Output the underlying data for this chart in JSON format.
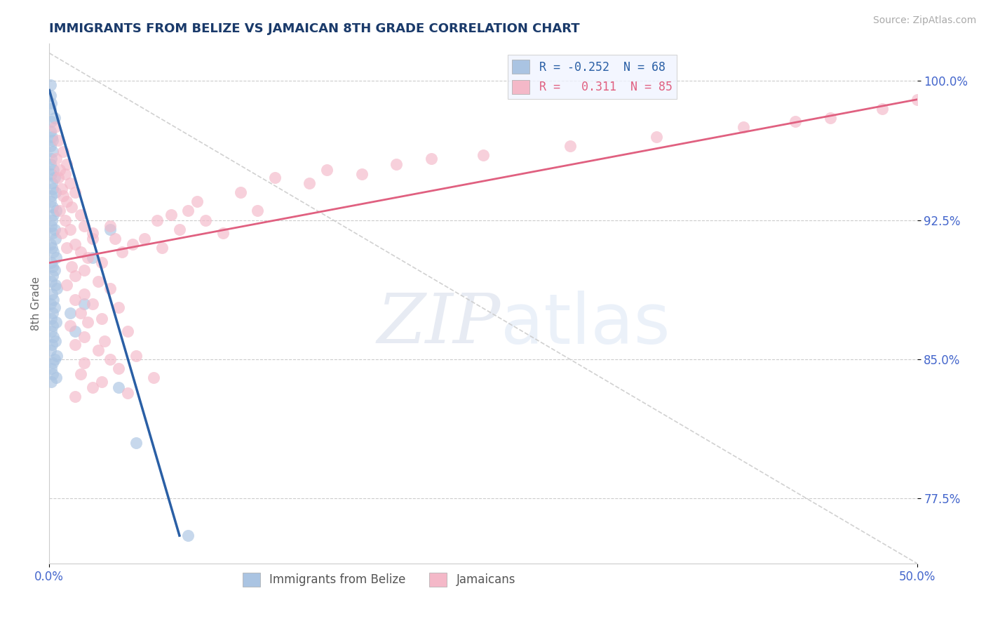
{
  "title": "IMMIGRANTS FROM BELIZE VS JAMAICAN 8TH GRADE CORRELATION CHART",
  "source_text": "Source: ZipAtlas.com",
  "ylabel": "8th Grade",
  "xlim": [
    0.0,
    50.0
  ],
  "ylim": [
    74.0,
    102.0
  ],
  "xtick_labels": [
    "0.0%",
    "50.0%"
  ],
  "xtick_vals": [
    0.0,
    50.0
  ],
  "ytick_labels": [
    "100.0%",
    "92.5%",
    "85.0%",
    "77.5%"
  ],
  "ytick_vals": [
    100.0,
    92.5,
    85.0,
    77.5
  ],
  "belize_R": -0.252,
  "belize_N": 68,
  "jamaican_R": 0.311,
  "jamaican_N": 85,
  "belize_color": "#aac4e2",
  "jamaican_color": "#f4b8c8",
  "belize_line_color": "#2a5fa5",
  "jamaican_line_color": "#e06080",
  "watermark_zip": "ZIP",
  "watermark_atlas": "atlas",
  "title_color": "#1a3a6a",
  "title_fontsize": 13,
  "source_color": "#aaaaaa",
  "legend_bg": "#f0f4ff",
  "belize_scatter": [
    [
      0.05,
      99.8
    ],
    [
      0.08,
      99.2
    ],
    [
      0.12,
      98.8
    ],
    [
      0.05,
      98.5
    ],
    [
      0.3,
      98.0
    ],
    [
      0.1,
      97.8
    ],
    [
      0.08,
      97.3
    ],
    [
      0.15,
      97.0
    ],
    [
      0.2,
      96.8
    ],
    [
      0.05,
      96.5
    ],
    [
      0.18,
      96.2
    ],
    [
      0.12,
      95.8
    ],
    [
      0.08,
      95.5
    ],
    [
      0.25,
      95.2
    ],
    [
      0.1,
      95.0
    ],
    [
      0.3,
      94.8
    ],
    [
      0.15,
      94.5
    ],
    [
      0.2,
      94.2
    ],
    [
      0.35,
      94.0
    ],
    [
      0.12,
      93.8
    ],
    [
      0.08,
      93.5
    ],
    [
      0.18,
      93.2
    ],
    [
      0.4,
      93.0
    ],
    [
      0.25,
      92.8
    ],
    [
      0.15,
      92.5
    ],
    [
      0.1,
      92.2
    ],
    [
      0.3,
      92.0
    ],
    [
      0.2,
      91.8
    ],
    [
      0.35,
      91.5
    ],
    [
      0.08,
      91.2
    ],
    [
      0.15,
      91.0
    ],
    [
      0.25,
      90.8
    ],
    [
      0.4,
      90.5
    ],
    [
      0.12,
      90.2
    ],
    [
      0.2,
      90.0
    ],
    [
      0.3,
      89.8
    ],
    [
      0.18,
      89.5
    ],
    [
      0.1,
      89.2
    ],
    [
      0.35,
      89.0
    ],
    [
      0.45,
      88.8
    ],
    [
      0.15,
      88.5
    ],
    [
      0.25,
      88.2
    ],
    [
      0.08,
      88.0
    ],
    [
      0.3,
      87.8
    ],
    [
      0.2,
      87.5
    ],
    [
      0.12,
      87.2
    ],
    [
      0.4,
      87.0
    ],
    [
      0.18,
      86.8
    ],
    [
      0.1,
      86.5
    ],
    [
      0.25,
      86.2
    ],
    [
      0.35,
      86.0
    ],
    [
      0.15,
      85.8
    ],
    [
      0.08,
      85.5
    ],
    [
      0.45,
      85.2
    ],
    [
      0.3,
      85.0
    ],
    [
      0.2,
      84.8
    ],
    [
      0.12,
      84.5
    ],
    [
      0.18,
      84.2
    ],
    [
      0.4,
      84.0
    ],
    [
      0.1,
      83.8
    ],
    [
      1.5,
      86.5
    ],
    [
      2.0,
      88.0
    ],
    [
      1.2,
      87.5
    ],
    [
      3.5,
      92.0
    ],
    [
      2.5,
      90.5
    ],
    [
      4.0,
      83.5
    ],
    [
      5.0,
      80.5
    ],
    [
      8.0,
      75.5
    ]
  ],
  "jamaican_scatter": [
    [
      0.3,
      97.5
    ],
    [
      0.5,
      96.8
    ],
    [
      0.8,
      96.2
    ],
    [
      0.4,
      95.8
    ],
    [
      1.0,
      95.5
    ],
    [
      0.6,
      95.2
    ],
    [
      0.9,
      95.0
    ],
    [
      0.5,
      94.8
    ],
    [
      1.2,
      94.5
    ],
    [
      0.7,
      94.2
    ],
    [
      1.5,
      94.0
    ],
    [
      0.8,
      93.8
    ],
    [
      1.0,
      93.5
    ],
    [
      1.3,
      93.2
    ],
    [
      0.6,
      93.0
    ],
    [
      1.8,
      92.8
    ],
    [
      0.9,
      92.5
    ],
    [
      2.0,
      92.2
    ],
    [
      1.2,
      92.0
    ],
    [
      0.7,
      91.8
    ],
    [
      2.5,
      91.5
    ],
    [
      1.5,
      91.2
    ],
    [
      1.0,
      91.0
    ],
    [
      1.8,
      90.8
    ],
    [
      2.2,
      90.5
    ],
    [
      3.0,
      90.2
    ],
    [
      1.3,
      90.0
    ],
    [
      2.0,
      89.8
    ],
    [
      1.5,
      89.5
    ],
    [
      2.8,
      89.2
    ],
    [
      1.0,
      89.0
    ],
    [
      3.5,
      88.8
    ],
    [
      2.0,
      88.5
    ],
    [
      1.5,
      88.2
    ],
    [
      2.5,
      88.0
    ],
    [
      4.0,
      87.8
    ],
    [
      1.8,
      87.5
    ],
    [
      3.0,
      87.2
    ],
    [
      2.2,
      87.0
    ],
    [
      1.2,
      86.8
    ],
    [
      4.5,
      86.5
    ],
    [
      2.0,
      86.2
    ],
    [
      3.2,
      86.0
    ],
    [
      1.5,
      85.8
    ],
    [
      2.8,
      85.5
    ],
    [
      5.0,
      85.2
    ],
    [
      3.5,
      85.0
    ],
    [
      2.0,
      84.8
    ],
    [
      4.0,
      84.5
    ],
    [
      1.8,
      84.2
    ],
    [
      6.0,
      84.0
    ],
    [
      3.0,
      83.8
    ],
    [
      2.5,
      83.5
    ],
    [
      4.5,
      83.2
    ],
    [
      1.5,
      83.0
    ],
    [
      7.0,
      92.8
    ],
    [
      8.0,
      93.0
    ],
    [
      9.0,
      92.5
    ],
    [
      10.0,
      91.8
    ],
    [
      12.0,
      93.0
    ],
    [
      15.0,
      94.5
    ],
    [
      18.0,
      95.0
    ],
    [
      20.0,
      95.5
    ],
    [
      25.0,
      96.0
    ],
    [
      30.0,
      96.5
    ],
    [
      35.0,
      97.0
    ],
    [
      40.0,
      97.5
    ],
    [
      43.0,
      97.8
    ],
    [
      45.0,
      98.0
    ],
    [
      48.0,
      98.5
    ],
    [
      50.0,
      99.0
    ],
    [
      5.5,
      91.5
    ],
    [
      6.5,
      91.0
    ],
    [
      3.8,
      91.5
    ],
    [
      4.2,
      90.8
    ],
    [
      7.5,
      92.0
    ],
    [
      2.5,
      91.8
    ],
    [
      3.5,
      92.2
    ],
    [
      4.8,
      91.2
    ],
    [
      6.2,
      92.5
    ],
    [
      8.5,
      93.5
    ],
    [
      11.0,
      94.0
    ],
    [
      13.0,
      94.8
    ],
    [
      16.0,
      95.2
    ],
    [
      22.0,
      95.8
    ]
  ],
  "belize_line": [
    [
      0,
      99.5
    ],
    [
      7.5,
      75.5
    ]
  ],
  "jamaican_line": [
    [
      0,
      90.2
    ],
    [
      50,
      99.0
    ]
  ]
}
